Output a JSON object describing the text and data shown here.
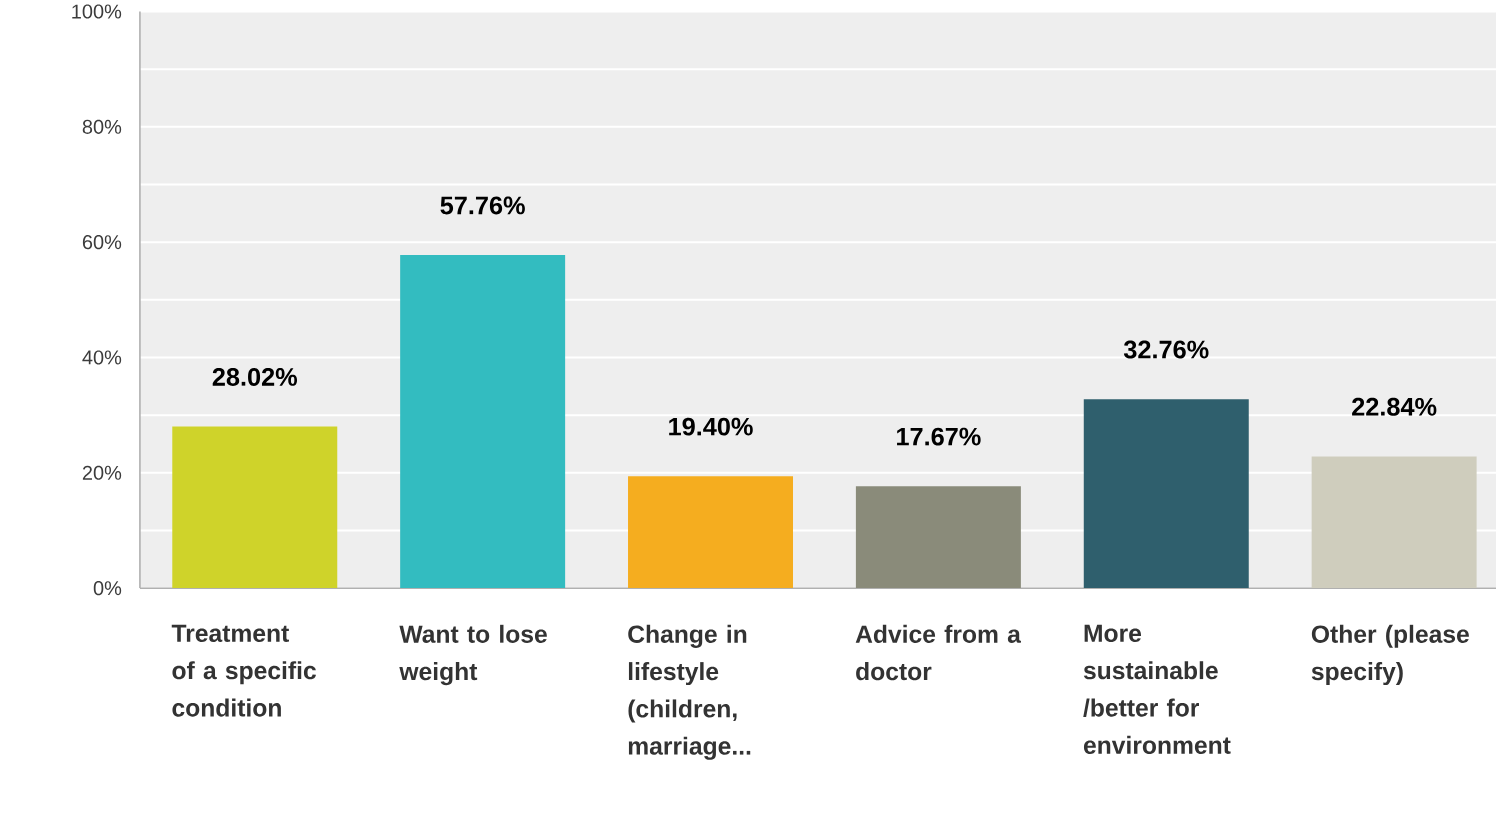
{
  "chart_data": {
    "type": "bar",
    "categories": [
      "Treatment of a specific condition",
      "Want to lose weight",
      "Change in lifestyle (children, marriage...",
      "Advice from a doctor",
      "More sustainable /better for environment",
      "Other (please specify)"
    ],
    "values": [
      28.02,
      57.76,
      19.4,
      17.67,
      32.76,
      22.84
    ],
    "colors": [
      "#cfd32a",
      "#33bcc0",
      "#f5ad1f",
      "#8a8b7a",
      "#2f5f6d",
      "#cfcdbd"
    ],
    "value_labels": [
      "28.02%",
      "57.76%",
      "19.40%",
      "17.67%",
      "32.76%",
      "22.84%"
    ],
    "ylim": [
      0,
      100
    ],
    "yticks": [
      {
        "value": 0,
        "label": "0%"
      },
      {
        "value": 10,
        "label": null
      },
      {
        "value": 20,
        "label": "20%"
      },
      {
        "value": 30,
        "label": null
      },
      {
        "value": 40,
        "label": "40%"
      },
      {
        "value": 50,
        "label": null
      },
      {
        "value": 60,
        "label": "60%"
      },
      {
        "value": 70,
        "label": null
      },
      {
        "value": 80,
        "label": "80%"
      },
      {
        "value": 90,
        "label": null
      },
      {
        "value": 100,
        "label": "100%"
      }
    ],
    "grid": "y"
  }
}
